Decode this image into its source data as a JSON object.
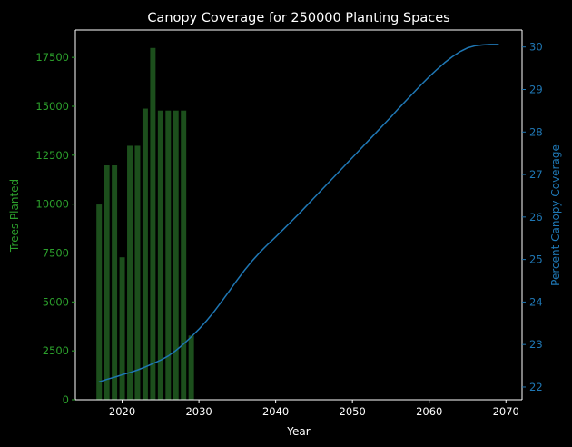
{
  "chart_data": {
    "type": "bar+line",
    "title": "Canopy Coverage for 250000 Planting Spaces",
    "xlabel": "Year",
    "ylabel_left": "Trees Planted",
    "ylabel_right": "Percent Canopy Coverage",
    "xlim": [
      2013.9,
      2072.1
    ],
    "ylim_left": [
      0,
      18900
    ],
    "ylim_right": [
      21.7,
      30.4
    ],
    "x_ticks": [
      2020,
      2030,
      2040,
      2050,
      2060,
      2070
    ],
    "y_left_ticks": [
      0,
      2500,
      5000,
      7500,
      10000,
      12500,
      15000,
      17500
    ],
    "y_right_ticks": [
      22,
      23,
      24,
      25,
      26,
      27,
      28,
      29,
      30
    ],
    "grid": false,
    "colors": {
      "background": "#000000",
      "axes": "#ffffff",
      "bars": "#1c4f1c",
      "bar_edge": "#000000",
      "left_axis": "#2ca02c",
      "right_axis": "#1f77b4",
      "line": "#1f77b4"
    },
    "bars": {
      "name": "Trees Planted",
      "x": [
        2017,
        2018,
        2019,
        2020,
        2021,
        2022,
        2023,
        2024,
        2025,
        2026,
        2027,
        2028,
        2029
      ],
      "values": [
        10000,
        12000,
        12000,
        7300,
        13000,
        13000,
        14900,
        18000,
        14800,
        14800,
        14800,
        14800,
        3300
      ]
    },
    "line": {
      "name": "Percent Canopy Coverage",
      "x": [
        2017,
        2018,
        2019,
        2020,
        2021,
        2022,
        2023,
        2024,
        2025,
        2026,
        2027,
        2028,
        2029,
        2030,
        2031,
        2032,
        2033,
        2034,
        2035,
        2036,
        2037,
        2038,
        2039,
        2040,
        2041,
        2042,
        2043,
        2044,
        2045,
        2046,
        2047,
        2048,
        2049,
        2050,
        2051,
        2052,
        2053,
        2054,
        2055,
        2056,
        2057,
        2058,
        2059,
        2060,
        2061,
        2062,
        2063,
        2064,
        2065,
        2066,
        2067,
        2068,
        2069
      ],
      "values": [
        22.12,
        22.18,
        22.23,
        22.29,
        22.34,
        22.4,
        22.47,
        22.55,
        22.63,
        22.73,
        22.86,
        23.01,
        23.18,
        23.36,
        23.56,
        23.78,
        24.02,
        24.27,
        24.52,
        24.76,
        24.98,
        25.18,
        25.36,
        25.53,
        25.71,
        25.89,
        26.07,
        26.26,
        26.45,
        26.64,
        26.83,
        27.02,
        27.21,
        27.4,
        27.59,
        27.78,
        27.97,
        28.16,
        28.35,
        28.55,
        28.74,
        28.93,
        29.12,
        29.3,
        29.47,
        29.63,
        29.77,
        29.89,
        29.98,
        30.03,
        30.05,
        30.06,
        30.06
      ]
    }
  }
}
